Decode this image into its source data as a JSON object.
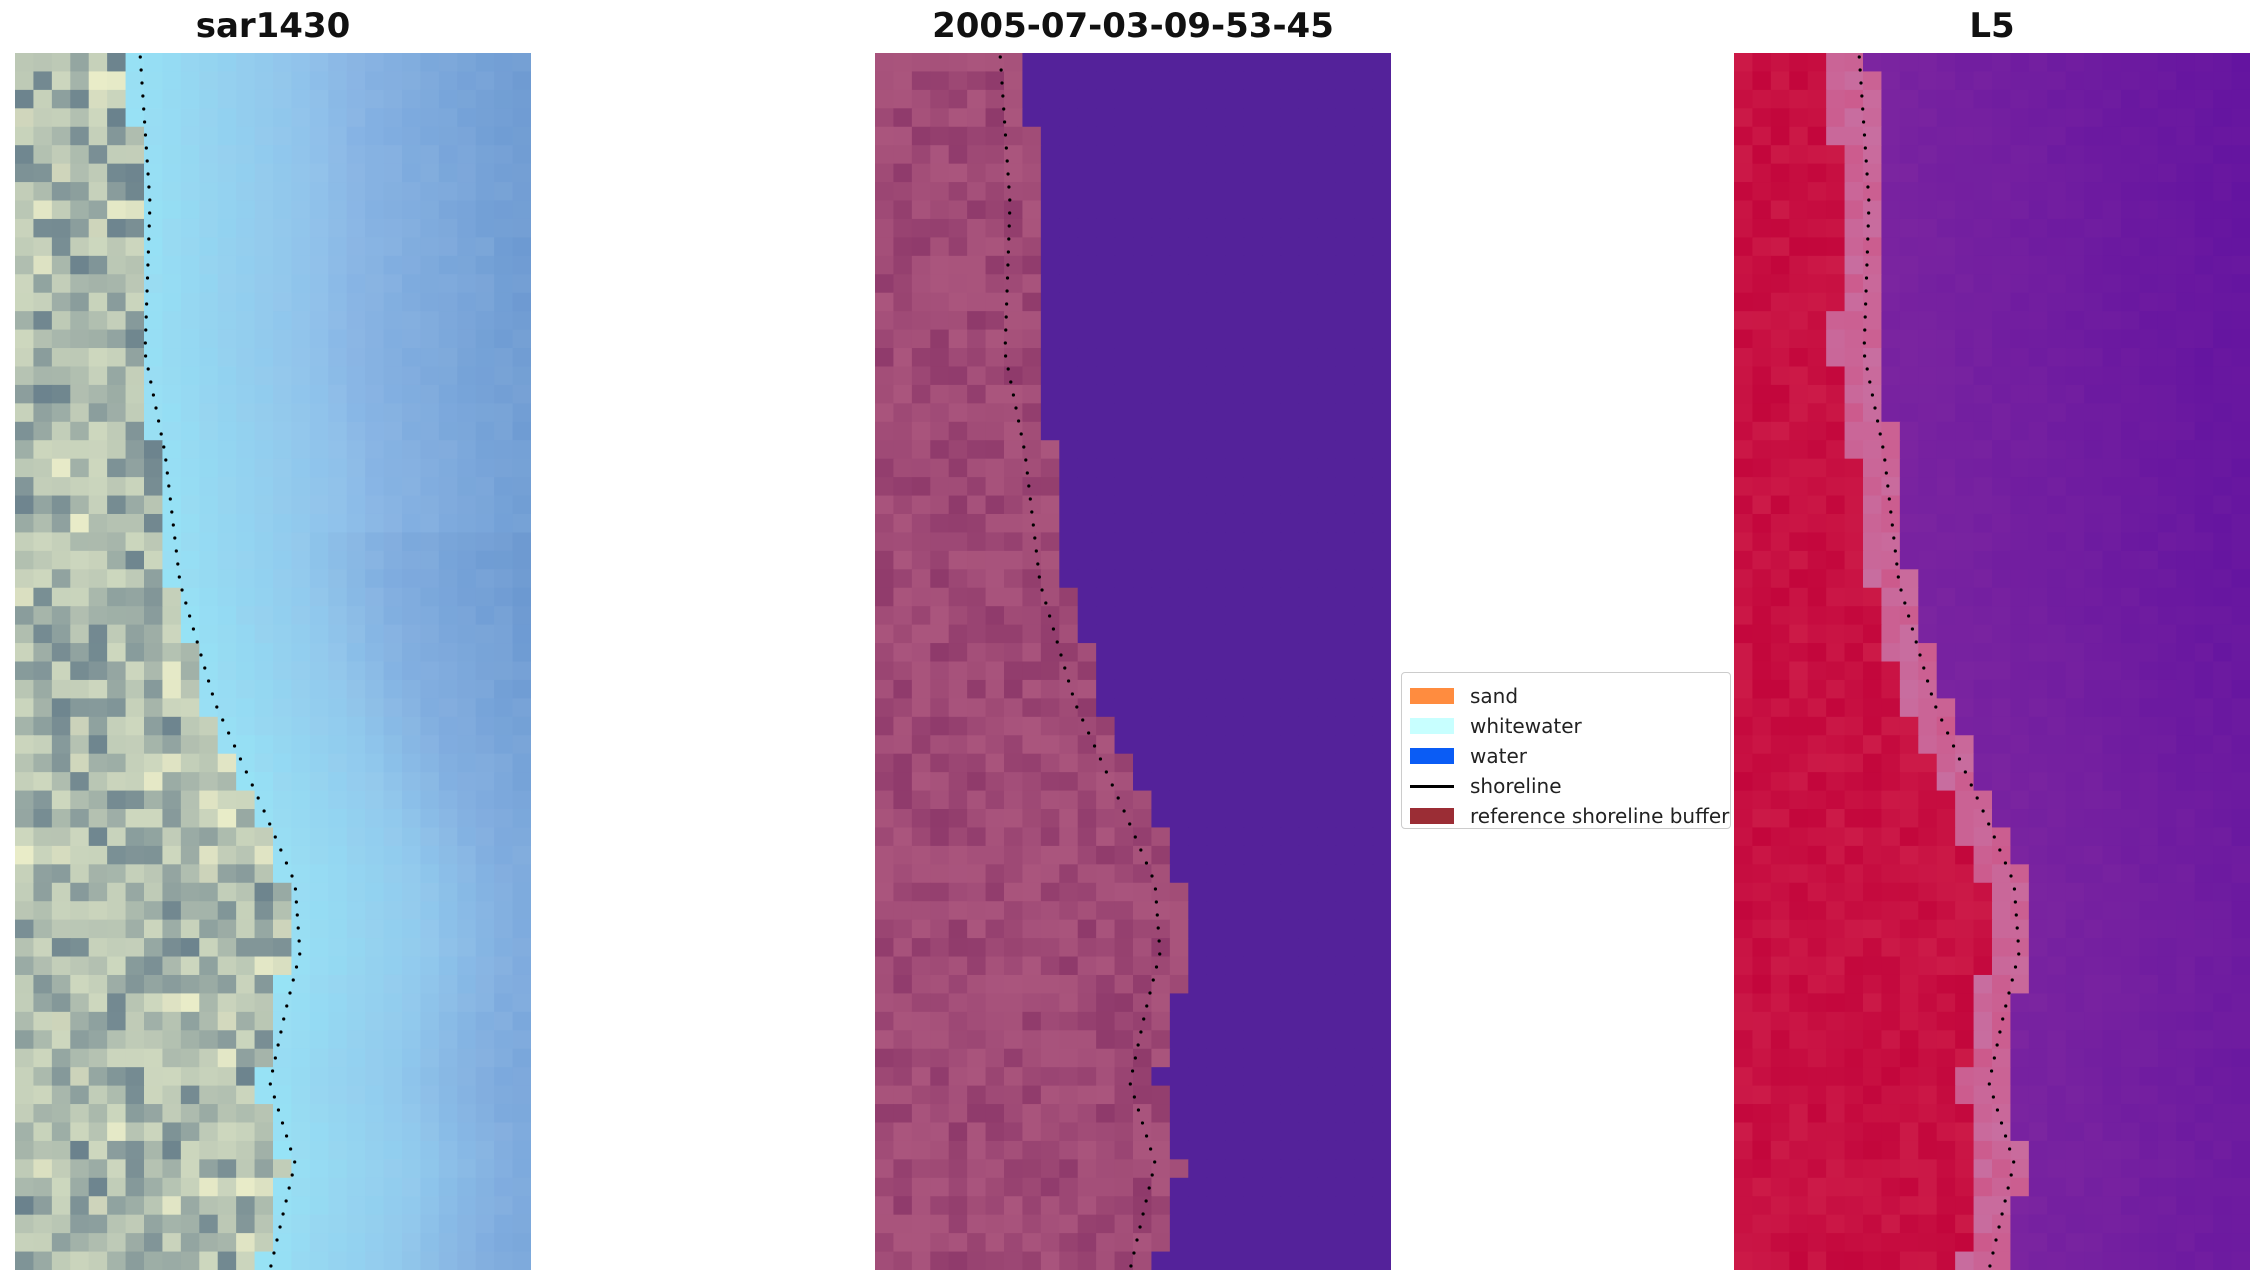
{
  "panels": [
    {
      "title": "sar1430",
      "type": "rgb-image"
    },
    {
      "title": "2005-07-03-09-53-45",
      "type": "classified-image"
    },
    {
      "title": "L5",
      "type": "index-image"
    }
  ],
  "legend": {
    "items": [
      {
        "label": "sand",
        "kind": "patch",
        "color": "#ff8c3f"
      },
      {
        "label": "whitewater",
        "kind": "patch",
        "color": "#c8ffff"
      },
      {
        "label": "water",
        "kind": "patch",
        "color": "#0a5cf5"
      },
      {
        "label": "shoreline",
        "kind": "line",
        "color": "#000000"
      },
      {
        "label": "reference shoreline buffer",
        "kind": "patch",
        "color": "#9b2d35"
      }
    ]
  },
  "colors": {
    "water_class": "#54229a",
    "buffer_overlay": "#a5527b",
    "index_land": "#c0063c",
    "index_water": "#7c249c"
  }
}
